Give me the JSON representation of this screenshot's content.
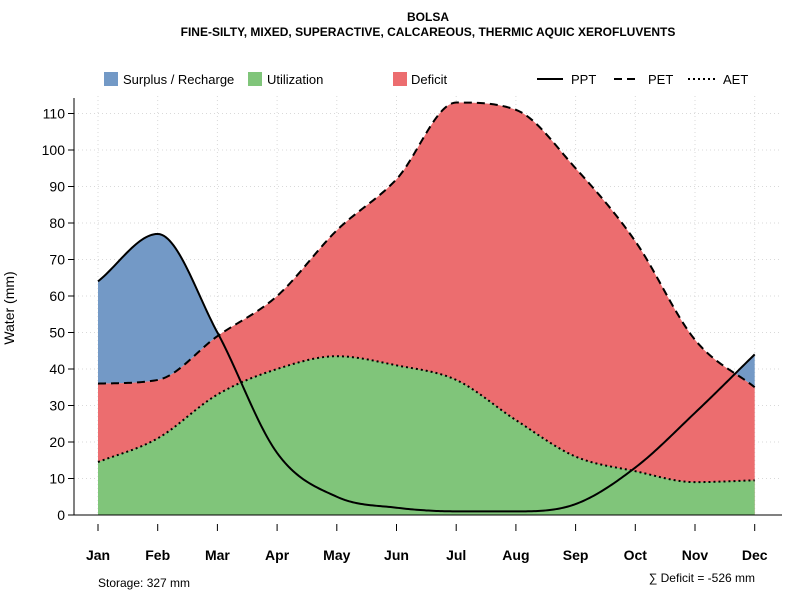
{
  "chart_data": {
    "type": "area",
    "title": "BOLSA",
    "subtitle": "FINE-SILTY, MIXED, SUPERACTIVE, CALCAREOUS, THERMIC AQUIC XEROFLUVENTS",
    "xlabel": "",
    "ylabel": "Water (mm)",
    "ylim": [
      0,
      115
    ],
    "yticks": [
      "0",
      "10",
      "20",
      "30",
      "40",
      "50",
      "60",
      "70",
      "80",
      "90",
      "100",
      "110"
    ],
    "yticks_values": [
      0,
      10,
      20,
      30,
      40,
      50,
      60,
      70,
      80,
      90,
      100,
      110
    ],
    "grid": true,
    "categories": [
      "Jan",
      "Feb",
      "Mar",
      "Apr",
      "May",
      "Jun",
      "Jul",
      "Aug",
      "Sep",
      "Oct",
      "Nov",
      "Dec"
    ],
    "series": [
      {
        "name": "PPT",
        "style": "solid",
        "values": [
          64,
          77,
          50,
          17,
          5,
          2,
          1,
          1,
          3,
          13,
          28,
          44
        ]
      },
      {
        "name": "PET",
        "style": "dashed",
        "values": [
          36,
          37,
          49,
          60,
          78,
          92,
          113,
          111,
          95,
          75,
          48,
          35
        ]
      },
      {
        "name": "AET",
        "style": "dotted",
        "values": [
          14.5,
          21,
          33,
          40,
          43.5,
          41,
          37,
          26,
          16,
          12,
          9,
          9.5
        ]
      }
    ],
    "fills": [
      {
        "name": "Surplus / Recharge",
        "color": "#7399C6"
      },
      {
        "name": "Utilization",
        "color": "#80C57A"
      },
      {
        "name": "Deficit",
        "color": "#EC6D6F"
      }
    ],
    "legend": {
      "position": "top",
      "items": [
        "Surplus / Recharge",
        "Utilization",
        "Deficit",
        "PPT",
        "PET",
        "AET"
      ]
    },
    "annotations": {
      "storage": "Storage: 327 mm",
      "deficit": "∑ Deficit = -526 mm"
    }
  }
}
